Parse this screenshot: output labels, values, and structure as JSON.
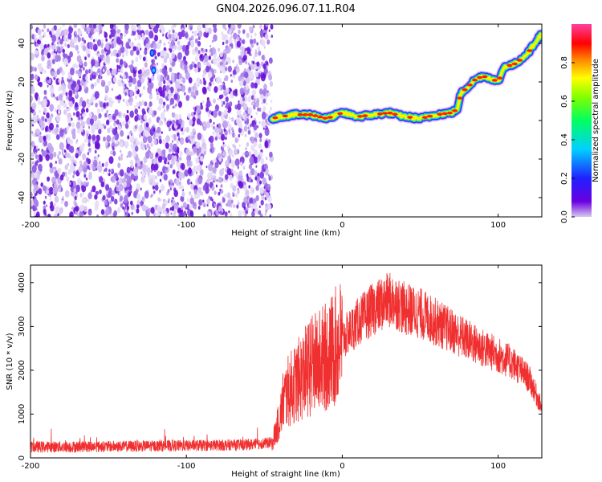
{
  "title": "GN04.2026.096.07.11.R04",
  "chart_data": [
    {
      "type": "heatmap",
      "xlabel": "Height of straight line (km)",
      "ylabel": "Frequency (Hz)",
      "xlim": [
        -200,
        128
      ],
      "ylim": [
        -50,
        50
      ],
      "xticks": [
        "-200",
        "-100",
        "0",
        "100"
      ],
      "yticks": [
        "40",
        "20",
        "0",
        "-20",
        "-40"
      ],
      "colorbar": {
        "label": "Normalized spectral amplitude",
        "range": [
          0,
          1
        ],
        "ticks": [
          "0.0",
          "0.2",
          "0.4",
          "0.6",
          "0.8"
        ],
        "colors": [
          "#d8c8f0",
          "#6a00e0",
          "#2020ff",
          "#00d0ff",
          "#00ff60",
          "#80ff00",
          "#ffff00",
          "#ff8000",
          "#ff0000",
          "#ff40a0"
        ]
      },
      "noise_region": {
        "x": [
          -200,
          -45
        ],
        "y": [
          -50,
          50
        ]
      },
      "peak_track": {
        "x": [
          -45,
          -40,
          -30,
          -20,
          -10,
          0,
          10,
          20,
          30,
          40,
          50,
          60,
          70,
          74,
          76,
          80,
          85,
          90,
          95,
          100,
          102,
          104,
          110,
          115,
          120,
          125,
          128
        ],
        "frequency": [
          1,
          2,
          3,
          3,
          1,
          4,
          2,
          3,
          4,
          2,
          1,
          3,
          4,
          6,
          14,
          17,
          21,
          23,
          22,
          20,
          24,
          28,
          29,
          32,
          36,
          42,
          45
        ]
      }
    },
    {
      "type": "line",
      "xlabel": "Height of straight line (km)",
      "ylabel": "SNR (10 * v/v)",
      "xlim": [
        -200,
        128
      ],
      "ylim": [
        0,
        4400
      ],
      "xticks": [
        "-200",
        "-100",
        "0",
        "100"
      ],
      "yticks": [
        "0",
        "1000",
        "2000",
        "3000",
        "4000"
      ],
      "color": "#f03030",
      "series": [
        {
          "x": [
            -200,
            -150,
            -100,
            -60,
            -45,
            -40,
            -38,
            -35,
            -30,
            -25,
            -20,
            -15,
            -10,
            -5,
            0,
            10,
            20,
            30,
            35,
            40,
            50,
            60,
            70,
            80,
            90,
            100,
            110,
            120,
            128
          ],
          "values": [
            250,
            260,
            280,
            300,
            350,
            900,
            1300,
            1500,
            1700,
            1900,
            2100,
            2200,
            2300,
            2500,
            2700,
            3100,
            3400,
            3600,
            3550,
            3400,
            3300,
            3100,
            2900,
            2700,
            2500,
            2350,
            2150,
            1800,
            1150
          ]
        }
      ]
    }
  ]
}
